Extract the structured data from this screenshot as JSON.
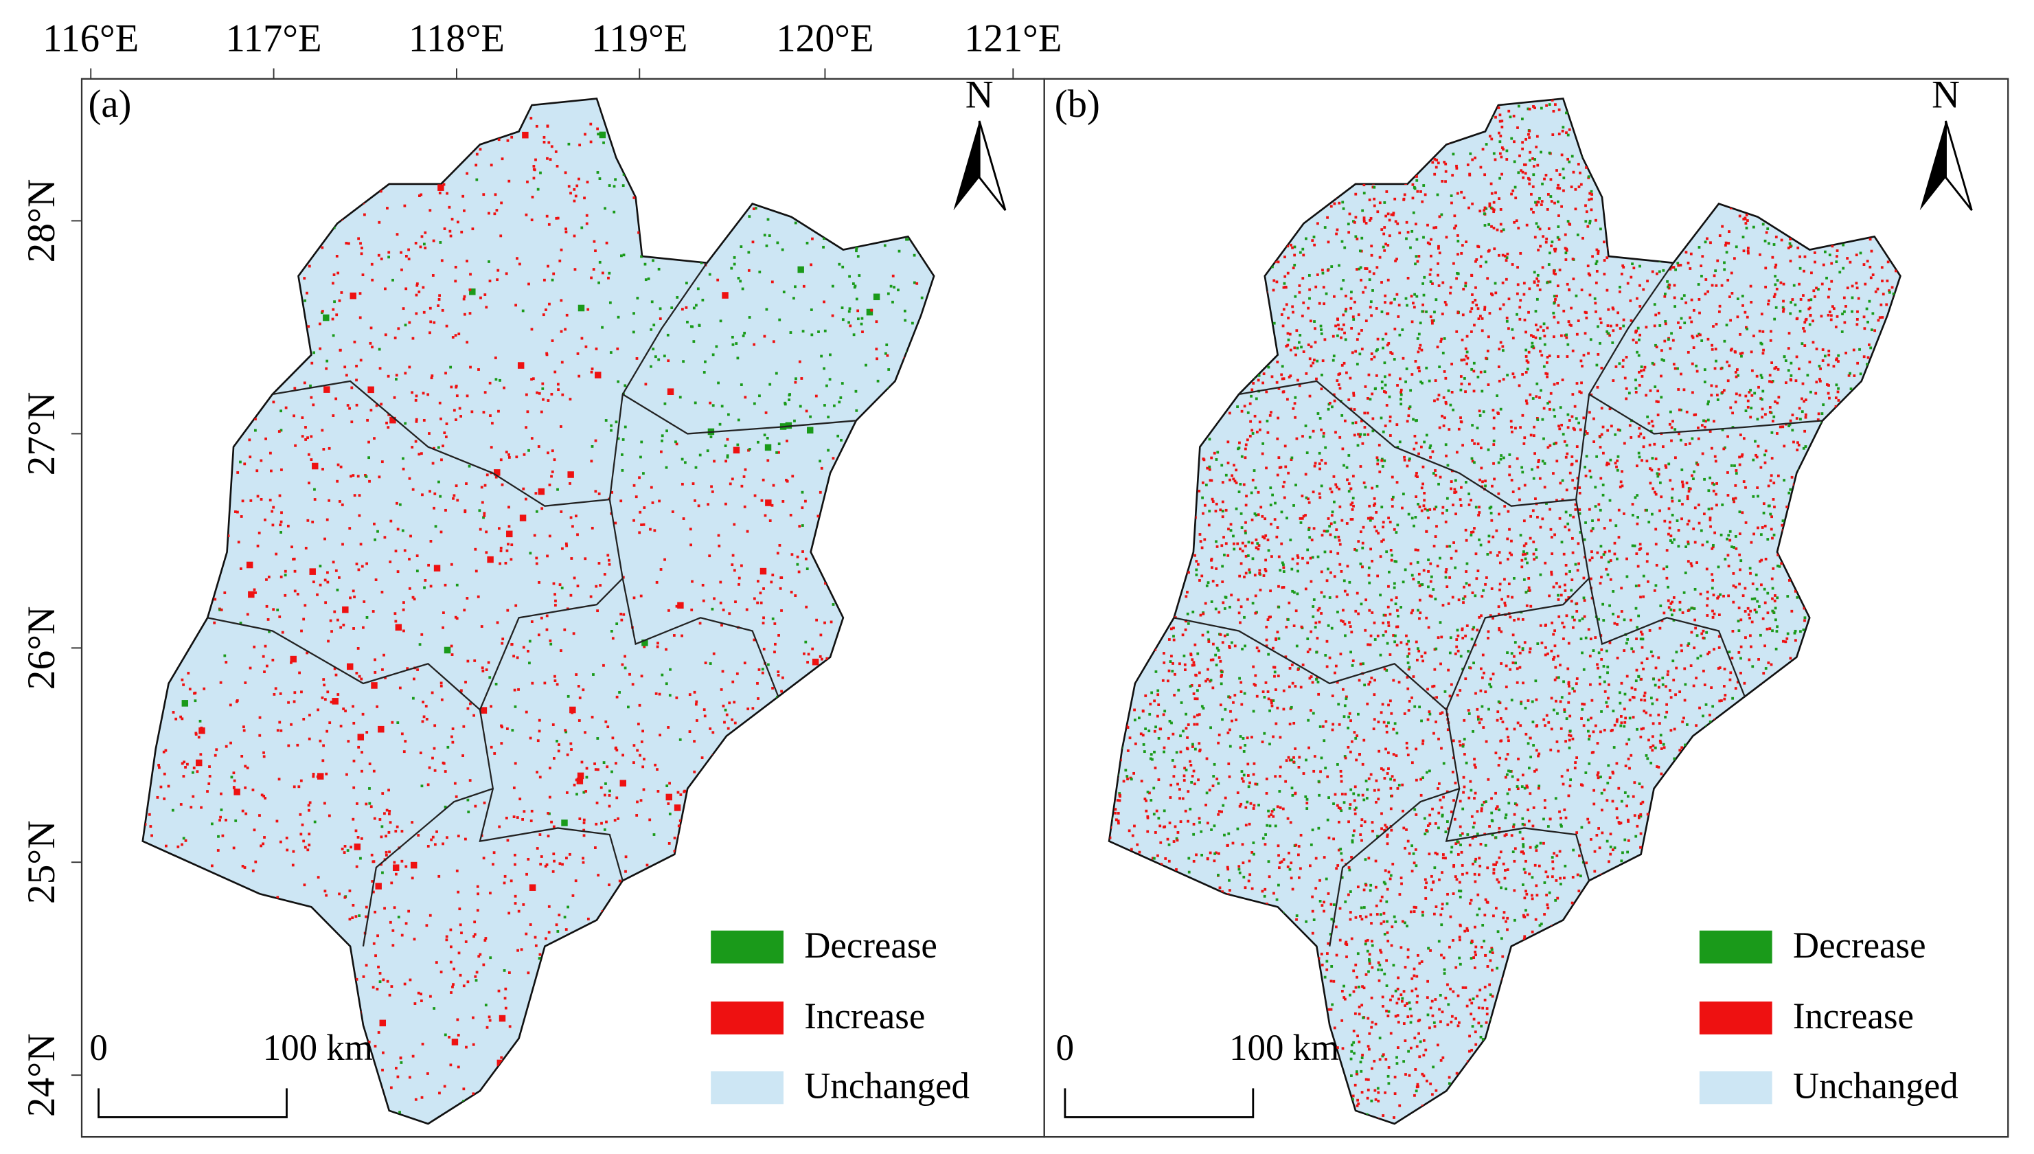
{
  "axes": {
    "lon_labels": [
      "116°E",
      "117°E",
      "118°E",
      "119°E",
      "120°E",
      "121°E"
    ],
    "lat_labels": [
      "28°N",
      "27°N",
      "26°N",
      "25°N",
      "24°N"
    ]
  },
  "panels": [
    {
      "label": "(a)"
    },
    {
      "label": "(b)"
    }
  ],
  "north": "N",
  "scale_bar": {
    "start": "0",
    "end": "100 km"
  },
  "legend": {
    "items": [
      {
        "label": "Decrease",
        "color": "#1a9a1a"
      },
      {
        "label": "Increase",
        "color": "#ee1111"
      },
      {
        "label": "Unchanged",
        "color": "#cde6f4"
      }
    ]
  }
}
